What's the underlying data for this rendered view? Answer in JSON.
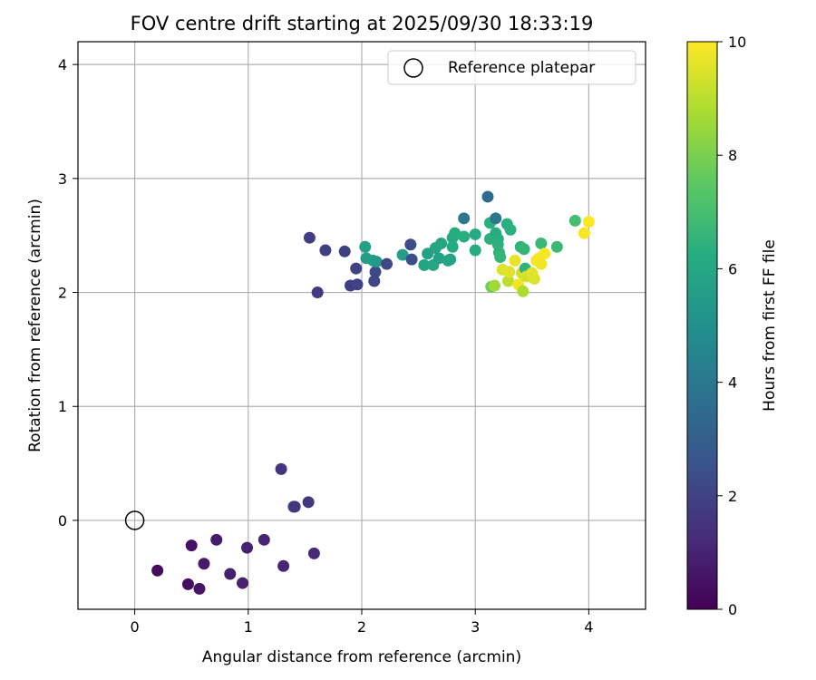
{
  "chart_data": {
    "type": "scatter",
    "title": "FOV centre drift starting at 2025/09/30 18:33:19",
    "xlabel": "Angular distance from reference (arcmin)",
    "ylabel": "Rotation from reference (arcmin)",
    "xlim": [
      -0.5,
      4.5
    ],
    "ylim": [
      -0.78,
      4.2
    ],
    "xticks": [
      0,
      1,
      2,
      3,
      4
    ],
    "yticks": [
      0,
      1,
      2,
      3,
      4
    ],
    "grid": true,
    "legend": {
      "placement": "top-right",
      "entries": [
        {
          "label": "Reference platepar",
          "marker": "open-circle"
        }
      ]
    },
    "reference_point": {
      "x": 0,
      "y": 0
    },
    "colorbar": {
      "label": "Hours from first FF file",
      "range": [
        0,
        10
      ],
      "ticks": [
        0,
        2,
        4,
        6,
        8,
        10
      ],
      "colormap": "viridis",
      "stops": [
        "#440154",
        "#472c7a",
        "#3b518b",
        "#2c718e",
        "#21908d",
        "#27ad81",
        "#5cc863",
        "#aadc32",
        "#fde725"
      ]
    },
    "points": [
      {
        "x": 0.2,
        "y": -0.44,
        "t": 0.3
      },
      {
        "x": 0.47,
        "y": -0.56,
        "t": 0.4
      },
      {
        "x": 0.5,
        "y": -0.22,
        "t": 0.5
      },
      {
        "x": 0.57,
        "y": -0.6,
        "t": 0.6
      },
      {
        "x": 0.61,
        "y": -0.38,
        "t": 0.7
      },
      {
        "x": 0.72,
        "y": -0.17,
        "t": 0.8
      },
      {
        "x": 0.84,
        "y": -0.47,
        "t": 0.9
      },
      {
        "x": 0.95,
        "y": -0.55,
        "t": 0.95
      },
      {
        "x": 0.99,
        "y": -0.24,
        "t": 1.0
      },
      {
        "x": 1.14,
        "y": -0.17,
        "t": 1.05
      },
      {
        "x": 1.31,
        "y": -0.4,
        "t": 1.1
      },
      {
        "x": 1.58,
        "y": -0.29,
        "t": 1.2
      },
      {
        "x": 1.29,
        "y": 0.45,
        "t": 1.5
      },
      {
        "x": 1.4,
        "y": 0.12,
        "t": 2.5
      },
      {
        "x": 1.41,
        "y": 0.12,
        "t": 1.6
      },
      {
        "x": 1.53,
        "y": 0.16,
        "t": 1.6
      },
      {
        "x": 1.54,
        "y": 2.48,
        "t": 1.8
      },
      {
        "x": 1.61,
        "y": 2.0,
        "t": 1.7
      },
      {
        "x": 1.68,
        "y": 2.37,
        "t": 1.85
      },
      {
        "x": 1.85,
        "y": 2.36,
        "t": 1.9
      },
      {
        "x": 1.9,
        "y": 2.06,
        "t": 1.9
      },
      {
        "x": 1.95,
        "y": 2.21,
        "t": 2.0
      },
      {
        "x": 1.96,
        "y": 2.07,
        "t": 2.0
      },
      {
        "x": 2.03,
        "y": 2.4,
        "t": 5.7
      },
      {
        "x": 2.04,
        "y": 2.3,
        "t": 5.5
      },
      {
        "x": 2.1,
        "y": 2.28,
        "t": 5.6
      },
      {
        "x": 2.11,
        "y": 2.1,
        "t": 2.1
      },
      {
        "x": 2.12,
        "y": 2.18,
        "t": 2.2
      },
      {
        "x": 2.13,
        "y": 2.27,
        "t": 5.4
      },
      {
        "x": 2.22,
        "y": 2.25,
        "t": 2.2
      },
      {
        "x": 2.36,
        "y": 2.33,
        "t": 5.6
      },
      {
        "x": 2.43,
        "y": 2.42,
        "t": 2.3
      },
      {
        "x": 2.44,
        "y": 2.29,
        "t": 2.4
      },
      {
        "x": 2.55,
        "y": 2.24,
        "t": 5.8
      },
      {
        "x": 2.58,
        "y": 2.34,
        "t": 5.7
      },
      {
        "x": 2.63,
        "y": 2.24,
        "t": 5.9
      },
      {
        "x": 2.65,
        "y": 2.39,
        "t": 5.8
      },
      {
        "x": 2.68,
        "y": 2.3,
        "t": 5.7
      },
      {
        "x": 2.7,
        "y": 2.43,
        "t": 6.0
      },
      {
        "x": 2.76,
        "y": 2.28,
        "t": 5.9
      },
      {
        "x": 2.78,
        "y": 2.29,
        "t": 5.8
      },
      {
        "x": 2.8,
        "y": 2.4,
        "t": 6.1
      },
      {
        "x": 2.8,
        "y": 2.48,
        "t": 6.0
      },
      {
        "x": 2.82,
        "y": 2.52,
        "t": 6.2
      },
      {
        "x": 2.9,
        "y": 2.65,
        "t": 4.0
      },
      {
        "x": 2.9,
        "y": 2.49,
        "t": 6.3
      },
      {
        "x": 3.0,
        "y": 2.37,
        "t": 6.2
      },
      {
        "x": 3.0,
        "y": 2.51,
        "t": 6.1
      },
      {
        "x": 3.11,
        "y": 2.84,
        "t": 3.5
      },
      {
        "x": 3.13,
        "y": 2.61,
        "t": 6.3
      },
      {
        "x": 3.13,
        "y": 2.47,
        "t": 6.4
      },
      {
        "x": 3.14,
        "y": 2.05,
        "t": 7.8
      },
      {
        "x": 3.17,
        "y": 2.06,
        "t": 8.6
      },
      {
        "x": 3.18,
        "y": 2.65,
        "t": 4.0
      },
      {
        "x": 3.18,
        "y": 2.52,
        "t": 6.2
      },
      {
        "x": 3.2,
        "y": 2.47,
        "t": 6.3
      },
      {
        "x": 3.2,
        "y": 2.42,
        "t": 6.4
      },
      {
        "x": 3.21,
        "y": 2.35,
        "t": 6.5
      },
      {
        "x": 3.22,
        "y": 2.31,
        "t": 6.6
      },
      {
        "x": 3.24,
        "y": 2.2,
        "t": 9.5
      },
      {
        "x": 3.28,
        "y": 2.6,
        "t": 6.3
      },
      {
        "x": 3.29,
        "y": 2.1,
        "t": 9.0
      },
      {
        "x": 3.31,
        "y": 2.55,
        "t": 6.4
      },
      {
        "x": 3.3,
        "y": 2.18,
        "t": 9.6
      },
      {
        "x": 3.35,
        "y": 2.28,
        "t": 9.7
      },
      {
        "x": 3.38,
        "y": 2.07,
        "t": 9.8
      },
      {
        "x": 3.4,
        "y": 2.4,
        "t": 6.5
      },
      {
        "x": 3.41,
        "y": 2.17,
        "t": 9.3
      },
      {
        "x": 3.42,
        "y": 2.01,
        "t": 8.8
      },
      {
        "x": 3.43,
        "y": 2.38,
        "t": 6.6
      },
      {
        "x": 3.44,
        "y": 2.21,
        "t": 6.5
      },
      {
        "x": 3.45,
        "y": 2.14,
        "t": 9.4
      },
      {
        "x": 3.5,
        "y": 2.17,
        "t": 9.6
      },
      {
        "x": 3.52,
        "y": 2.12,
        "t": 9.5
      },
      {
        "x": 3.54,
        "y": 2.28,
        "t": 9.9
      },
      {
        "x": 3.56,
        "y": 2.3,
        "t": 9.9
      },
      {
        "x": 3.58,
        "y": 2.43,
        "t": 6.7
      },
      {
        "x": 3.58,
        "y": 2.25,
        "t": 9.8
      },
      {
        "x": 3.61,
        "y": 2.34,
        "t": 9.9
      },
      {
        "x": 3.72,
        "y": 2.4,
        "t": 6.8
      },
      {
        "x": 3.88,
        "y": 2.63,
        "t": 7.0
      },
      {
        "x": 3.96,
        "y": 2.52,
        "t": 9.9
      },
      {
        "x": 4.0,
        "y": 2.62,
        "t": 10.0
      }
    ]
  }
}
